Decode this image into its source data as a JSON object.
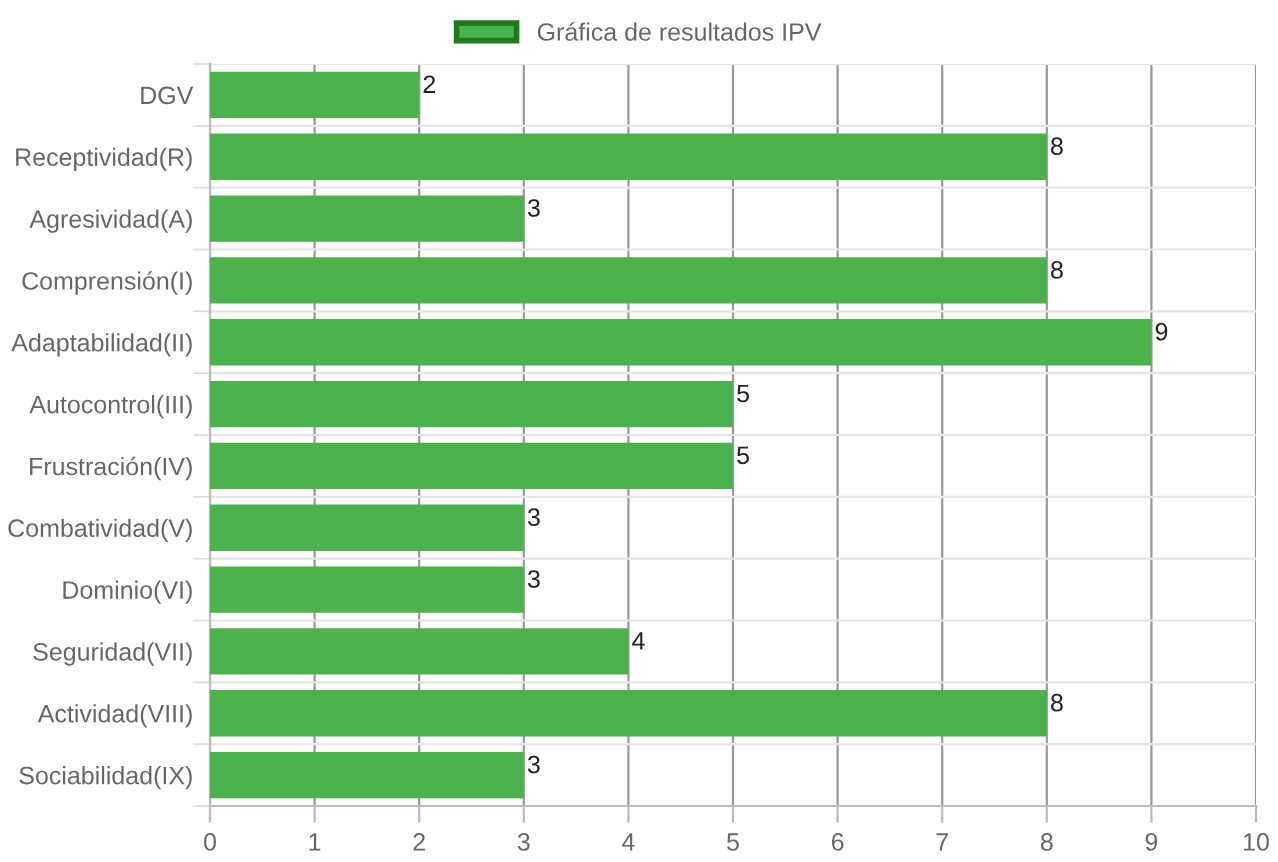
{
  "chart_data": {
    "type": "bar",
    "orientation": "horizontal",
    "categories": [
      "DGV",
      "Receptividad(R)",
      "Agresividad(A)",
      "Comprensión(I)",
      "Adaptabilidad(II)",
      "Autocontrol(III)",
      "Frustración(IV)",
      "Combatividad(V)",
      "Dominio(VI)",
      "Seguridad(VII)",
      "Actividad(VIII)",
      "Sociabilidad(IX)"
    ],
    "series": [
      {
        "name": "Gráfica de resultados IPV",
        "color": "#4cb34c",
        "values": [
          2,
          8,
          3,
          8,
          9,
          5,
          5,
          3,
          3,
          4,
          8,
          3
        ]
      }
    ],
    "xlim": [
      0,
      10
    ],
    "xticks": [
      0,
      1,
      2,
      3,
      4,
      5,
      6,
      7,
      8,
      9,
      10
    ],
    "grid": true,
    "legend": "top",
    "data_labels": true
  }
}
